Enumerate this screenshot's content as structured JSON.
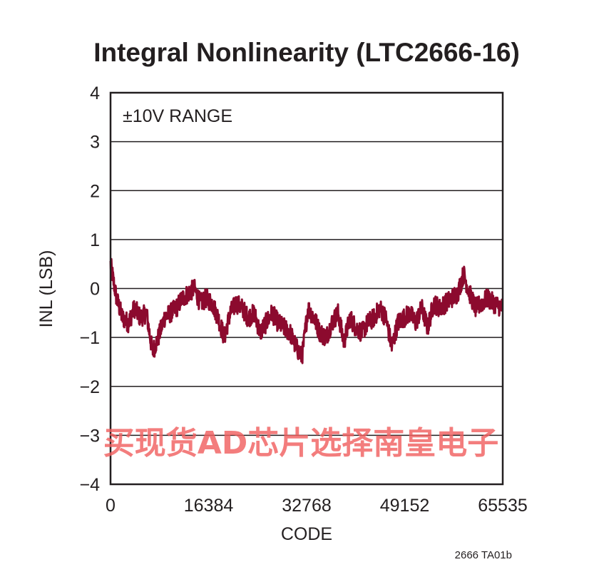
{
  "chart_data": {
    "type": "line",
    "title": "Integral Nonlinearity (LTC2666-16)",
    "xlabel": "CODE",
    "ylabel": "INL (LSB)",
    "xlim": [
      0,
      65535
    ],
    "ylim": [
      -4,
      4
    ],
    "x_ticks": [
      {
        "value": 0,
        "label": "0"
      },
      {
        "value": 16384,
        "label": "16384"
      },
      {
        "value": 32768,
        "label": "32768"
      },
      {
        "value": 49152,
        "label": "49152"
      },
      {
        "value": 65535,
        "label": "65535"
      }
    ],
    "y_ticks": [
      {
        "value": 4,
        "label": "4"
      },
      {
        "value": 3,
        "label": "3"
      },
      {
        "value": 2,
        "label": "2"
      },
      {
        "value": 1,
        "label": "1"
      },
      {
        "value": 0,
        "label": "0"
      },
      {
        "value": -1,
        "label": "−1"
      },
      {
        "value": -2,
        "label": "−2"
      },
      {
        "value": -3,
        "label": "−3"
      },
      {
        "value": -4,
        "label": "−4"
      }
    ],
    "grid": "horizontal",
    "annotation": "±10V RANGE",
    "series_color": "#8c0a2e",
    "series": [
      {
        "x": [
          0,
          1000,
          2000,
          3000,
          4000,
          5000,
          6000,
          7000,
          8000,
          9000,
          10000,
          11000,
          12000,
          13000,
          14000,
          15000,
          16000,
          17000,
          18000,
          19000,
          20000,
          21000,
          22000,
          23000,
          24000,
          25000,
          26000,
          27000,
          28000,
          29000,
          30000,
          31000,
          32000,
          33000,
          34000,
          35000,
          36000,
          37000,
          38000,
          39000,
          40000,
          41000,
          42000,
          43000,
          44000,
          45000,
          46000,
          47000,
          48000,
          49000,
          50000,
          51000,
          52000,
          53000,
          54000,
          55000,
          56000,
          57000,
          58000,
          59000,
          60000,
          61000,
          62000,
          63000,
          64000,
          65535
        ],
        "y": [
          0.5,
          -0.2,
          -0.6,
          -0.7,
          -0.4,
          -0.6,
          -0.5,
          -1.3,
          -1.0,
          -0.6,
          -0.5,
          -0.4,
          -0.2,
          -0.1,
          0.0,
          -0.3,
          -0.2,
          -0.3,
          -0.6,
          -1.0,
          -0.5,
          -0.3,
          -0.4,
          -0.6,
          -0.5,
          -0.9,
          -0.7,
          -0.5,
          -0.7,
          -0.8,
          -0.9,
          -1.2,
          -1.4,
          -0.4,
          -0.6,
          -0.9,
          -1.0,
          -0.7,
          -0.5,
          -1.1,
          -0.6,
          -0.8,
          -0.9,
          -0.7,
          -0.6,
          -0.4,
          -0.6,
          -1.2,
          -0.7,
          -0.6,
          -0.5,
          -0.7,
          -0.4,
          -0.8,
          -0.3,
          -0.4,
          -0.3,
          -0.2,
          -0.1,
          0.3,
          -0.1,
          -0.4,
          -0.3,
          -0.2,
          -0.3,
          -0.4
        ]
      }
    ]
  },
  "figure_code": "2666 TA01b",
  "watermark": "买现货AD芯片选择南皇电子"
}
